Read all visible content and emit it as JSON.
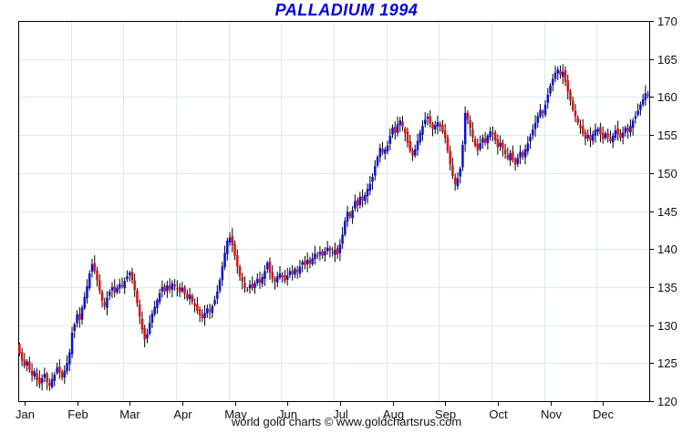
{
  "title": "PALLADIUM 1994",
  "caption": "world gold charts © www.goldchartsrus.com",
  "chart_data": {
    "type": "candlestick",
    "title": "PALLADIUM 1994",
    "xlabel": "",
    "ylabel": "",
    "ylim": [
      120,
      170
    ],
    "y_ticks": [
      120,
      125,
      130,
      135,
      140,
      145,
      150,
      155,
      160,
      165,
      170
    ],
    "grid": true,
    "x_categories": [
      "Jan",
      "Feb",
      "Mar",
      "Apr",
      "May",
      "Jun",
      "Jul",
      "Aug",
      "Sep",
      "Oct",
      "Nov",
      "Dec"
    ],
    "months": [
      {
        "label": "Jan",
        "closes": [
          126.2,
          125.3,
          124.6,
          125.2,
          124.1,
          123.4,
          123.9,
          122.8,
          122.2,
          123.0,
          123.6,
          122.5,
          122.0,
          122.9,
          123.5,
          124.4,
          123.7,
          123.1,
          124.0,
          125.0,
          126.4
        ]
      },
      {
        "label": "Feb",
        "closes": [
          129.0,
          130.1,
          131.4,
          130.7,
          132.3,
          133.7,
          135.1,
          136.8,
          138.0,
          137.1,
          135.9,
          134.5,
          133.2,
          132.5,
          133.6,
          134.4,
          135.0,
          134.3,
          134.9,
          135.4,
          135.1
        ]
      },
      {
        "label": "Mar",
        "closes": [
          135.8,
          136.4,
          136.9,
          135.9,
          134.6,
          132.9,
          131.1,
          129.4,
          128.1,
          128.8,
          130.3,
          131.5,
          132.4,
          133.3,
          134.2,
          135.0,
          134.4,
          135.2,
          134.7,
          135.5,
          135.1
        ]
      },
      {
        "label": "Apr",
        "closes": [
          134.8,
          134.3,
          134.9,
          134.1,
          133.5,
          134.0,
          133.1,
          132.5,
          131.9,
          131.3,
          130.9,
          131.6,
          132.2,
          131.8,
          132.5,
          133.3,
          134.4,
          135.9,
          137.7,
          139.5,
          141.1
        ]
      },
      {
        "label": "May",
        "closes": [
          141.5,
          140.5,
          139.1,
          137.7,
          136.4,
          135.7,
          134.9,
          134.6,
          135.3,
          134.8,
          135.5,
          136.1,
          135.6,
          136.3,
          137.1,
          138.2,
          136.9,
          136.1,
          135.7,
          136.4,
          136.8
        ]
      },
      {
        "label": "Jun",
        "closes": [
          136.3,
          135.8,
          136.5,
          137.1,
          136.7,
          137.4,
          137.0,
          137.7,
          138.3,
          137.9,
          138.6,
          138.1,
          138.8,
          139.4,
          139.0,
          139.6,
          139.1,
          139.7,
          140.2,
          139.8,
          139.5
        ]
      },
      {
        "label": "Jul",
        "closes": [
          139.9,
          139.3,
          140.6,
          141.9,
          143.7,
          144.9,
          144.3,
          145.1,
          146.3,
          145.7,
          146.9,
          146.4,
          147.1,
          147.9,
          148.6,
          149.5,
          150.9,
          152.1,
          153.3,
          152.7,
          153.1
        ]
      },
      {
        "label": "Aug",
        "closes": [
          153.6,
          154.9,
          156.0,
          155.3,
          156.4,
          156.9,
          156.1,
          155.2,
          154.0,
          152.9,
          152.3,
          153.1,
          154.2,
          155.3,
          156.2,
          157.0,
          157.4,
          156.5,
          155.8,
          156.3,
          156.7
        ]
      },
      {
        "label": "Sep",
        "closes": [
          156.1,
          155.4,
          154.6,
          152.9,
          151.1,
          149.6,
          148.5,
          149.3,
          150.6,
          153.7,
          157.9,
          157.0,
          155.9,
          154.7,
          153.6,
          153.0,
          153.9,
          154.6,
          154.0,
          154.9,
          155.5
        ]
      },
      {
        "label": "Oct",
        "closes": [
          155.1,
          154.3,
          153.4,
          154.0,
          153.2,
          152.5,
          151.9,
          152.6,
          151.7,
          151.1,
          152.0,
          152.8,
          152.2,
          153.1,
          153.9,
          154.8,
          155.7,
          156.6,
          157.5,
          158.3,
          157.9
        ]
      },
      {
        "label": "Nov",
        "closes": [
          159.0,
          160.3,
          161.5,
          162.4,
          163.2,
          163.6,
          162.9,
          163.3,
          162.0,
          160.7,
          159.5,
          158.3,
          157.4,
          156.6,
          155.9,
          155.2,
          154.5,
          155.0,
          154.3,
          155.1,
          155.7
        ]
      },
      {
        "label": "Dec",
        "closes": [
          155.8,
          155.1,
          154.5,
          155.2,
          154.7,
          154.2,
          154.9,
          155.6,
          155.1,
          154.6,
          155.3,
          156.0,
          155.5,
          156.2,
          156.9,
          157.5,
          158.2,
          159.0,
          159.7,
          160.5,
          160.2
        ]
      }
    ],
    "colors": {
      "up": "#0d0de0",
      "down": "#e21010",
      "wick": "#000000",
      "grid": "#d8e9f5",
      "axis": "#000000",
      "tick_label": "#111111",
      "title": "#0000dd",
      "background": "#ffffff"
    },
    "legend": null
  }
}
